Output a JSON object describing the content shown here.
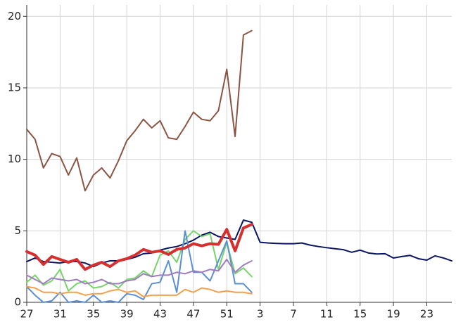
{
  "chart_data": {
    "type": "line",
    "categories": [
      "27",
      null,
      null,
      null,
      "31",
      null,
      null,
      null,
      "35",
      null,
      null,
      null,
      "39",
      null,
      null,
      null,
      "43",
      null,
      null,
      null,
      "47",
      null,
      null,
      null,
      "51",
      null,
      null,
      null,
      "3",
      null,
      null,
      null,
      "7",
      null,
      null,
      null,
      "11",
      null,
      null,
      null,
      "15",
      null,
      null,
      null,
      "19",
      null,
      null,
      null,
      "23",
      null,
      null,
      null
    ],
    "ylim": [
      0,
      20.8
    ],
    "yticks": [
      0,
      5,
      10,
      15,
      20
    ],
    "grid": true,
    "series": [
      {
        "color": "#0b1464",
        "width": 2,
        "values": [
          2.85,
          3.1,
          2.85,
          2.8,
          2.75,
          2.85,
          2.85,
          2.75,
          2.5,
          2.75,
          2.9,
          2.9,
          3.0,
          3.15,
          3.4,
          3.45,
          3.65,
          3.8,
          3.9,
          4.1,
          4.35,
          4.7,
          4.9,
          4.6,
          4.5,
          4.4,
          5.75,
          5.6,
          4.2,
          4.15,
          4.12,
          4.1,
          4.1,
          4.15,
          4.0,
          3.9,
          3.82,
          3.75,
          3.68,
          3.5,
          3.65,
          3.45,
          3.38,
          3.4,
          3.1,
          3.2,
          3.28,
          3.05,
          2.95,
          3.25,
          3.1,
          2.9
        ]
      },
      {
        "color": "#77d46a",
        "width": 2,
        "values": [
          1.4,
          1.9,
          1.2,
          1.5,
          2.3,
          0.8,
          1.3,
          1.5,
          1.0,
          1.1,
          1.4,
          1.0,
          1.6,
          1.7,
          2.2,
          1.8,
          3.3,
          3.6,
          2.8,
          4.4,
          5.0,
          4.6,
          4.8,
          2.3,
          4.2,
          2.0,
          2.4,
          1.8,
          null,
          null,
          null,
          null,
          null,
          null,
          null,
          null,
          null,
          null,
          null,
          null,
          null,
          null,
          null,
          null,
          null,
          null,
          null,
          null,
          null,
          null,
          null,
          null
        ]
      },
      {
        "color": "#5b8fd4",
        "width": 2,
        "values": [
          1.1,
          0.5,
          0,
          0.1,
          0.7,
          0,
          0.1,
          0,
          0.5,
          0,
          0.1,
          0,
          0.6,
          0.5,
          0.2,
          1.3,
          1.4,
          2.9,
          0.7,
          5.0,
          2.1,
          2.1,
          1.5,
          2.9,
          4.3,
          1.3,
          1.3,
          0.7,
          null,
          null,
          null,
          null,
          null,
          null,
          null,
          null,
          null,
          null,
          null,
          null,
          null,
          null,
          null,
          null,
          null,
          null,
          null,
          null,
          null,
          null,
          null,
          null
        ]
      },
      {
        "color": "#a07cc0",
        "width": 2,
        "values": [
          1.9,
          1.6,
          1.3,
          1.7,
          1.6,
          1.5,
          1.6,
          1.3,
          1.4,
          1.6,
          1.3,
          1.3,
          1.5,
          1.6,
          2.0,
          1.8,
          1.9,
          1.9,
          2.1,
          2.0,
          2.2,
          2.1,
          2.3,
          2.2,
          3.0,
          2.1,
          2.6,
          2.9,
          null,
          null,
          null,
          null,
          null,
          null,
          null,
          null,
          null,
          null,
          null,
          null,
          null,
          null,
          null,
          null,
          null,
          null,
          null,
          null,
          null,
          null,
          null,
          null
        ]
      },
      {
        "color": "#f4a04a",
        "width": 2,
        "values": [
          1.1,
          1.0,
          0.7,
          0.7,
          0.6,
          0.7,
          0.7,
          0.5,
          0.6,
          0.6,
          0.8,
          0.9,
          0.7,
          0.8,
          0.4,
          0.5,
          0.5,
          0.5,
          0.5,
          0.9,
          0.7,
          1.0,
          0.9,
          0.7,
          0.8,
          0.7,
          0.7,
          0.6,
          null,
          null,
          null,
          null,
          null,
          null,
          null,
          null,
          null,
          null,
          null,
          null,
          null,
          null,
          null,
          null,
          null,
          null,
          null,
          null,
          null,
          null,
          null,
          null
        ]
      },
      {
        "color": "#8c5543",
        "width": 2,
        "values": [
          12.1,
          11.4,
          9.4,
          10.4,
          10.2,
          8.9,
          10.1,
          7.8,
          8.9,
          9.4,
          8.7,
          9.9,
          11.3,
          12.0,
          12.8,
          12.2,
          12.7,
          11.5,
          11.4,
          12.3,
          13.3,
          12.8,
          12.7,
          13.4,
          16.3,
          11.6,
          18.7,
          19.0,
          null,
          null,
          null,
          null,
          null,
          null,
          null,
          null,
          null,
          null,
          null,
          null,
          null,
          null,
          null,
          null,
          null,
          null,
          null,
          null,
          null,
          null,
          null,
          null
        ]
      },
      {
        "color": "#d62f2f",
        "width": 4,
        "values": [
          3.55,
          3.3,
          2.65,
          3.2,
          3.0,
          2.8,
          3.0,
          2.3,
          2.6,
          2.8,
          2.5,
          2.9,
          3.05,
          3.3,
          3.7,
          3.5,
          3.6,
          3.35,
          3.7,
          3.8,
          4.1,
          3.95,
          4.1,
          4.05,
          5.1,
          3.6,
          5.2,
          5.45,
          null,
          null,
          null,
          null,
          null,
          null,
          null,
          null,
          null,
          null,
          null,
          null,
          null,
          null,
          null,
          null,
          null,
          null,
          null,
          null,
          null,
          null,
          null,
          null
        ]
      }
    ]
  }
}
